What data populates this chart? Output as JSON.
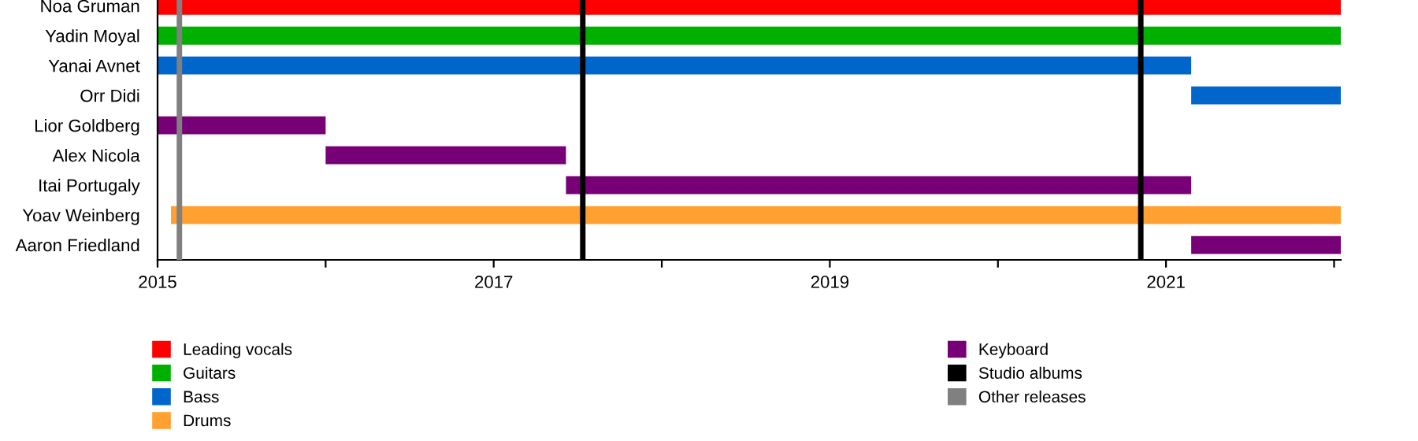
{
  "chart_data": {
    "type": "bar",
    "orientation": "horizontal",
    "categories": [
      "Noa Gruman",
      "Yadin Moyal",
      "Yanai Avnet",
      "Orr Didi",
      "Lior Goldberg",
      "Alex Nicola",
      "Itai Portugaly",
      "Yoav Weinberg",
      "Aaron Friedland"
    ],
    "series": [
      {
        "name": "Leading vocals",
        "color": "#ff0000",
        "base": [
          2015,
          null,
          null,
          null,
          null,
          null,
          null,
          null,
          null
        ],
        "values": [
          7.04,
          null,
          null,
          null,
          null,
          null,
          null,
          null,
          null
        ]
      },
      {
        "name": "Guitars",
        "color": "#00b000",
        "base": [
          null,
          2015,
          null,
          null,
          null,
          null,
          null,
          null,
          null
        ],
        "values": [
          null,
          7.04,
          null,
          null,
          null,
          null,
          null,
          null,
          null
        ]
      },
      {
        "name": "Bass",
        "color": "#0066cc",
        "base": [
          null,
          null,
          2015,
          2021.15,
          null,
          null,
          null,
          null,
          null
        ],
        "values": [
          null,
          null,
          6.15,
          0.89,
          null,
          null,
          null,
          null,
          null
        ]
      },
      {
        "name": "Drums",
        "color": "#ffa030",
        "base": [
          null,
          null,
          null,
          null,
          null,
          null,
          null,
          2015.08,
          null
        ],
        "values": [
          null,
          null,
          null,
          null,
          null,
          null,
          null,
          6.96,
          null
        ]
      },
      {
        "name": "Keyboard",
        "color": "#770077",
        "base": [
          null,
          null,
          null,
          null,
          2015,
          2016.0,
          2017.43,
          null,
          2021.15
        ],
        "values": [
          null,
          null,
          null,
          null,
          1.0,
          1.43,
          3.72,
          null,
          0.89
        ]
      }
    ],
    "ref_lines": [
      {
        "axis": "x",
        "value": 2017.53,
        "label": "Studio albums",
        "color": "#000000"
      },
      {
        "axis": "x",
        "value": 2020.85,
        "label": null,
        "color": "#000000"
      },
      {
        "axis": "x",
        "value": 2015.13,
        "label": "Other releases",
        "color": "#808080"
      }
    ],
    "xlim": [
      2015,
      2022.04
    ],
    "xticks": [
      2015,
      {
        "value": 2016,
        "label": null
      },
      2017,
      {
        "value": 2018,
        "label": null
      },
      2019,
      {
        "value": 2020,
        "label": null
      },
      2021,
      {
        "value": 2022,
        "label": null
      }
    ],
    "legend": "bottom",
    "grid": false
  }
}
